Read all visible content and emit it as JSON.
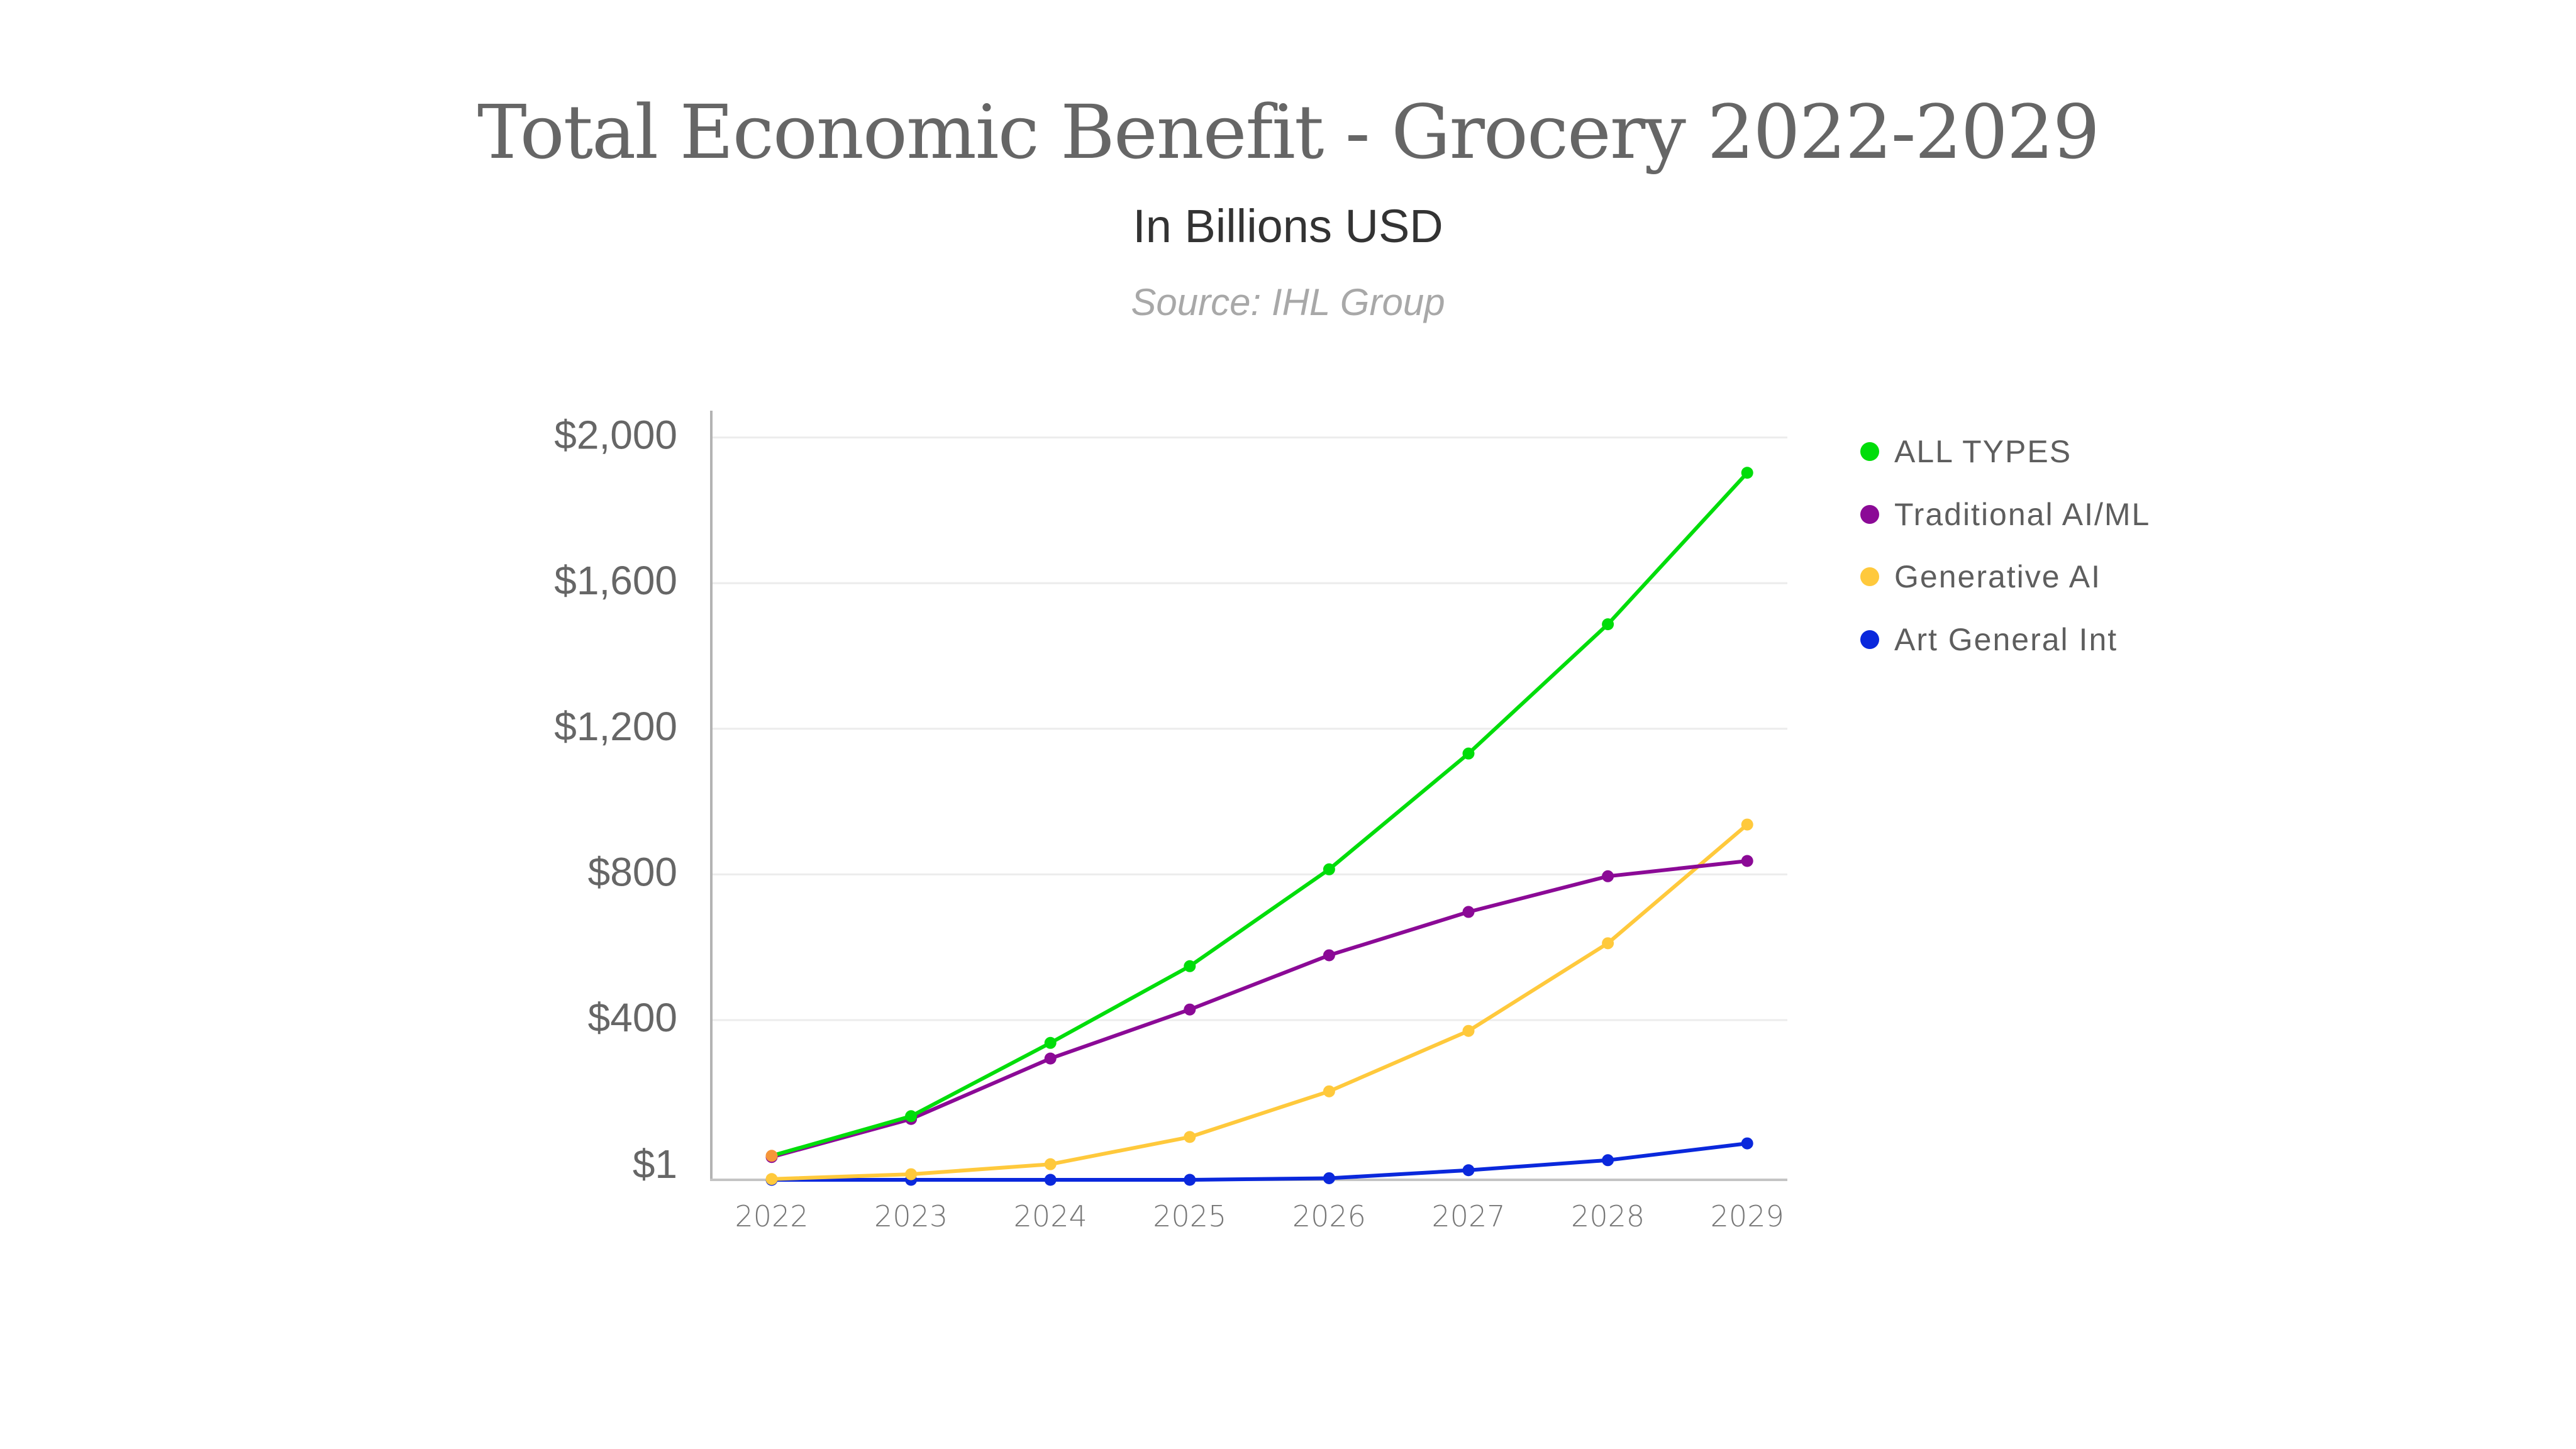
{
  "chart_data": {
    "type": "line",
    "title": "Total Economic Benefit - Grocery 2022-2029",
    "subtitle": "In Billions USD",
    "source": "Source: IHL Group",
    "xlabel": "",
    "ylabel": "",
    "categories": [
      "2022",
      "2023",
      "2024",
      "2025",
      "2026",
      "2027",
      "2028",
      "2029"
    ],
    "y_ticks": [
      1,
      400,
      800,
      1200,
      1600,
      2000
    ],
    "y_tick_labels": [
      "$1",
      "$400",
      "$800",
      "$1,200",
      "$1,600",
      "$2,000"
    ],
    "ylim": [
      1,
      2000
    ],
    "grid": true,
    "legend_position": "right",
    "series": [
      {
        "name": "ALL TYPES",
        "color": "#00DD0A",
        "first_marker_color": "#F5953A",
        "values": [
          61,
          160,
          343,
          548,
          814,
          1132,
          1487,
          1903
        ]
      },
      {
        "name": "Traditional AI/ML",
        "color": "#8B0A96",
        "values": [
          58,
          153,
          304,
          429,
          578,
          697,
          795,
          837
        ]
      },
      {
        "name": "Generative AI",
        "color": "#FFC93C",
        "values": [
          3,
          15,
          40,
          108,
          222,
          373,
          611,
          937
        ]
      },
      {
        "name": "Art General Int",
        "color": "#0A28DC",
        "values": [
          1,
          1,
          1,
          1,
          5,
          25,
          50,
          92
        ]
      }
    ]
  }
}
